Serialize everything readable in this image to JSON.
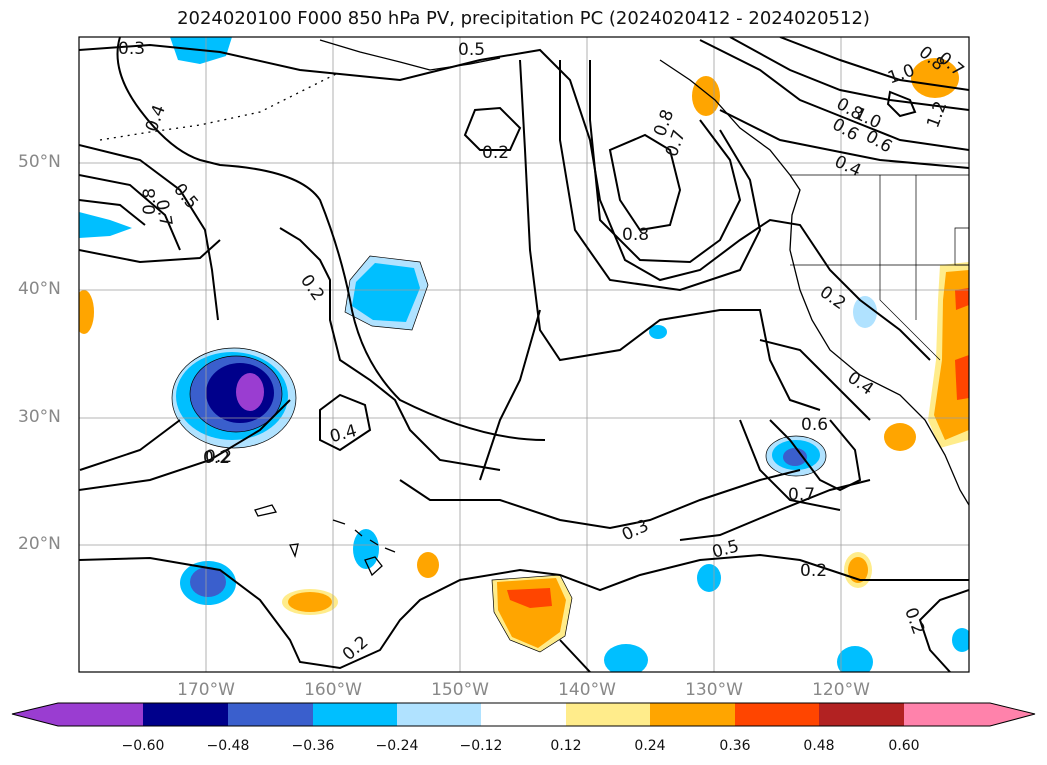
{
  "title": "2024020100 F000 850 hPa PV, precipitation PC (2024020412 - 2024020512)",
  "lat_labels": [
    "50°N",
    "40°N",
    "30°N",
    "20°N"
  ],
  "lon_labels": [
    "170°W",
    "160°W",
    "150°W",
    "140°W",
    "130°W",
    "120°W"
  ],
  "contour_labels": [
    "0.3",
    "0.5",
    "0.4",
    "0.2",
    "0.8",
    "0.7",
    "0.8",
    "0.7",
    "0.5",
    "0.8",
    "0.7",
    "1.0",
    "0.8",
    "1.2",
    "0.6",
    "0.8",
    "1.0",
    "0.6",
    "0.4",
    "0.2",
    "0.2",
    "0.2",
    "0.4",
    "0.4",
    "0.6",
    "0.7",
    "0.3",
    "0.5",
    "0.2",
    "0.2",
    "0.2",
    "0.2"
  ],
  "colorbar": {
    "ticks": [
      "−0.60",
      "−0.48",
      "−0.36",
      "−0.24",
      "−0.12",
      "0.12",
      "0.24",
      "0.36",
      "0.48",
      "0.60"
    ],
    "colors": [
      "#9a3dd1",
      "#00008b",
      "#3a5fcd",
      "#00bfff",
      "#b0e2ff",
      "#ffffff",
      "#ffec8b",
      "#ffa500",
      "#ff4500",
      "#b22222",
      "#ff82ab"
    ]
  },
  "fill_colors": {
    "neg1": "#b0e2ff",
    "neg2": "#00bfff",
    "neg3": "#3a5fcd",
    "neg4": "#00008b",
    "neg5": "#9a3dd1",
    "pos1": "#ffec8b",
    "pos2": "#ffa500",
    "pos3": "#ff4500"
  }
}
